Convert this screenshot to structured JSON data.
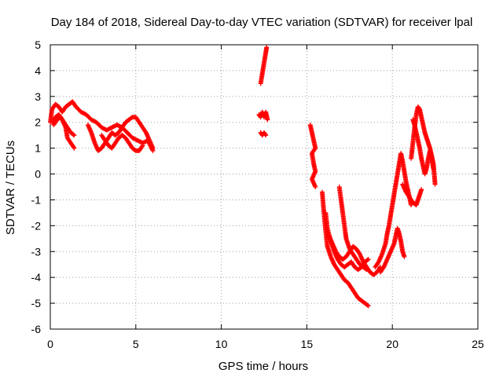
{
  "chart_data": {
    "type": "scatter",
    "title": "Day 184 of 2018, Sidereal Day-to-day VTEC variation (SDTVAR) for receiver lpal",
    "xlabel": "GPS time / hours",
    "ylabel": "SDTVAR / TECUs",
    "xlim": [
      0,
      25
    ],
    "ylim": [
      -6,
      5
    ],
    "xticks": [
      0,
      5,
      10,
      15,
      20,
      25
    ],
    "yticks": [
      -6,
      -5,
      -4,
      -3,
      -2,
      -1,
      0,
      1,
      2,
      3,
      4,
      5
    ],
    "grid": true,
    "marker": "+",
    "color": "#ff0000",
    "series": [
      {
        "points": [
          [
            0.0,
            2.0
          ],
          [
            0.1,
            2.5
          ],
          [
            0.3,
            2.7
          ],
          [
            0.5,
            2.6
          ],
          [
            0.7,
            2.4
          ],
          [
            0.9,
            2.6
          ],
          [
            1.1,
            2.7
          ],
          [
            1.3,
            2.8
          ],
          [
            1.5,
            2.6
          ],
          [
            1.8,
            2.4
          ],
          [
            2.1,
            2.3
          ],
          [
            2.4,
            2.1
          ],
          [
            2.7,
            2.0
          ],
          [
            3.0,
            1.8
          ],
          [
            3.3,
            1.7
          ],
          [
            3.6,
            1.8
          ],
          [
            3.9,
            1.9
          ],
          [
            4.2,
            1.8
          ],
          [
            4.5,
            1.6
          ],
          [
            4.8,
            1.4
          ],
          [
            5.1,
            1.3
          ],
          [
            5.4,
            1.2
          ],
          [
            5.7,
            1.3
          ],
          [
            6.0,
            0.9
          ]
        ]
      },
      {
        "points": [
          [
            0.1,
            2.0
          ],
          [
            0.3,
            2.2
          ],
          [
            0.5,
            2.3
          ],
          [
            0.7,
            2.1
          ],
          [
            0.9,
            1.8
          ],
          [
            1.0,
            1.4
          ],
          [
            1.2,
            1.2
          ],
          [
            1.4,
            1.0
          ]
        ]
      },
      {
        "points": [
          [
            0.2,
            1.9
          ],
          [
            0.4,
            2.1
          ],
          [
            0.6,
            2.2
          ],
          [
            0.8,
            2.0
          ],
          [
            1.0,
            1.8
          ],
          [
            1.2,
            1.6
          ],
          [
            1.4,
            1.5
          ]
        ]
      },
      {
        "points": [
          [
            2.2,
            1.9
          ],
          [
            2.4,
            1.6
          ],
          [
            2.6,
            1.2
          ],
          [
            2.8,
            0.9
          ],
          [
            3.0,
            1.0
          ],
          [
            3.2,
            1.2
          ],
          [
            3.4,
            1.4
          ],
          [
            3.6,
            1.6
          ],
          [
            3.8,
            1.5
          ],
          [
            4.0,
            1.6
          ],
          [
            4.2,
            1.8
          ],
          [
            4.4,
            2.0
          ],
          [
            4.6,
            2.1
          ],
          [
            4.8,
            2.2
          ],
          [
            5.0,
            2.2
          ],
          [
            5.2,
            2.0
          ],
          [
            5.4,
            1.8
          ],
          [
            5.6,
            1.6
          ],
          [
            5.8,
            1.3
          ],
          [
            6.0,
            1.0
          ]
        ]
      },
      {
        "points": [
          [
            3.0,
            1.5
          ],
          [
            3.2,
            1.3
          ],
          [
            3.4,
            1.1
          ],
          [
            3.6,
            1.0
          ],
          [
            3.8,
            1.2
          ],
          [
            4.0,
            1.4
          ],
          [
            4.2,
            1.5
          ],
          [
            4.4,
            1.4
          ],
          [
            4.6,
            1.2
          ],
          [
            4.8,
            1.0
          ],
          [
            5.0,
            0.9
          ],
          [
            5.2,
            0.9
          ],
          [
            5.4,
            1.1
          ]
        ]
      },
      {
        "points": [
          [
            12.3,
            3.5
          ],
          [
            12.4,
            3.9
          ],
          [
            12.5,
            4.3
          ],
          [
            12.6,
            4.7
          ],
          [
            12.65,
            4.9
          ]
        ]
      },
      {
        "points": [
          [
            12.2,
            2.3
          ],
          [
            12.3,
            2.2
          ],
          [
            12.4,
            2.4
          ],
          [
            12.5,
            2.2
          ],
          [
            12.6,
            2.4
          ],
          [
            12.7,
            2.1
          ]
        ]
      },
      {
        "points": [
          [
            12.3,
            1.6
          ],
          [
            12.4,
            1.5
          ],
          [
            12.5,
            1.6
          ],
          [
            12.6,
            1.5
          ]
        ]
      },
      {
        "points": [
          [
            15.2,
            1.9
          ],
          [
            15.3,
            1.6
          ],
          [
            15.4,
            1.3
          ],
          [
            15.5,
            1.0
          ],
          [
            15.3,
            0.8
          ],
          [
            15.4,
            0.4
          ],
          [
            15.5,
            0.1
          ],
          [
            15.3,
            -0.2
          ],
          [
            15.5,
            -0.5
          ]
        ]
      },
      {
        "points": [
          [
            15.9,
            -0.7
          ],
          [
            16.0,
            -1.5
          ],
          [
            16.1,
            -2.2
          ],
          [
            16.2,
            -2.8
          ],
          [
            16.4,
            -3.2
          ],
          [
            16.6,
            -3.5
          ],
          [
            16.8,
            -3.7
          ],
          [
            17.0,
            -3.9
          ],
          [
            17.2,
            -4.1
          ],
          [
            17.4,
            -4.2
          ],
          [
            17.6,
            -4.4
          ],
          [
            17.8,
            -4.6
          ],
          [
            18.0,
            -4.8
          ],
          [
            18.2,
            -4.9
          ],
          [
            18.4,
            -5.0
          ],
          [
            18.6,
            -5.1
          ]
        ]
      },
      {
        "points": [
          [
            16.1,
            -1.5
          ],
          [
            16.2,
            -2.1
          ],
          [
            16.4,
            -2.6
          ],
          [
            16.6,
            -3.0
          ],
          [
            16.8,
            -3.3
          ],
          [
            17.0,
            -3.5
          ],
          [
            17.2,
            -3.6
          ],
          [
            17.4,
            -3.5
          ],
          [
            17.6,
            -3.4
          ],
          [
            17.8,
            -3.6
          ],
          [
            18.0,
            -3.7
          ],
          [
            18.2,
            -3.6
          ],
          [
            18.4,
            -3.4
          ],
          [
            18.6,
            -3.3
          ]
        ]
      },
      {
        "points": [
          [
            16.3,
            -2.4
          ],
          [
            16.5,
            -2.7
          ],
          [
            16.7,
            -3.0
          ],
          [
            16.9,
            -3.2
          ],
          [
            17.1,
            -3.3
          ],
          [
            17.3,
            -3.2
          ],
          [
            17.5,
            -3.0
          ],
          [
            17.7,
            -2.8
          ],
          [
            17.9,
            -2.9
          ],
          [
            18.1,
            -3.1
          ],
          [
            18.3,
            -3.4
          ],
          [
            18.5,
            -3.6
          ],
          [
            18.7,
            -3.8
          ],
          [
            18.9,
            -3.9
          ],
          [
            19.1,
            -3.8
          ],
          [
            19.3,
            -3.6
          ]
        ]
      },
      {
        "points": [
          [
            16.9,
            -0.5
          ],
          [
            17.0,
            -1.0
          ],
          [
            17.1,
            -1.5
          ],
          [
            17.2,
            -2.0
          ],
          [
            17.3,
            -2.5
          ],
          [
            17.5,
            -2.9
          ],
          [
            17.7,
            -3.1
          ],
          [
            17.9,
            -3.3
          ],
          [
            18.1,
            -3.5
          ],
          [
            18.3,
            -3.6
          ],
          [
            18.5,
            -3.7
          ]
        ]
      },
      {
        "points": [
          [
            19.0,
            -3.6
          ],
          [
            19.2,
            -3.4
          ],
          [
            19.4,
            -3.1
          ],
          [
            19.6,
            -2.7
          ],
          [
            19.7,
            -2.3
          ],
          [
            19.8,
            -2.0
          ],
          [
            19.9,
            -1.6
          ],
          [
            20.0,
            -1.2
          ],
          [
            20.1,
            -0.8
          ],
          [
            20.2,
            -0.4
          ],
          [
            20.3,
            0.0
          ],
          [
            20.4,
            0.4
          ],
          [
            20.5,
            0.8
          ],
          [
            20.6,
            0.5
          ],
          [
            20.7,
            0.1
          ],
          [
            20.8,
            -0.3
          ],
          [
            20.9,
            -0.6
          ],
          [
            21.0,
            -0.9
          ],
          [
            21.1,
            -1.2
          ]
        ]
      },
      {
        "points": [
          [
            19.3,
            -3.8
          ],
          [
            19.5,
            -3.6
          ],
          [
            19.7,
            -3.3
          ],
          [
            19.9,
            -3.0
          ],
          [
            20.1,
            -2.7
          ],
          [
            20.2,
            -2.4
          ],
          [
            20.3,
            -2.1
          ],
          [
            20.4,
            -2.3
          ],
          [
            20.5,
            -2.6
          ],
          [
            20.6,
            -3.0
          ],
          [
            20.7,
            -3.2
          ]
        ]
      },
      {
        "points": [
          [
            21.1,
            0.6
          ],
          [
            21.2,
            1.2
          ],
          [
            21.3,
            1.8
          ],
          [
            21.4,
            2.3
          ],
          [
            21.5,
            2.6
          ],
          [
            21.6,
            2.5
          ],
          [
            21.7,
            2.2
          ],
          [
            21.8,
            1.9
          ],
          [
            21.9,
            1.6
          ],
          [
            22.0,
            1.4
          ],
          [
            22.1,
            1.2
          ],
          [
            22.2,
            1.0
          ],
          [
            22.3,
            0.7
          ],
          [
            22.4,
            0.4
          ],
          [
            22.45,
            0.0
          ],
          [
            22.5,
            -0.4
          ]
        ]
      },
      {
        "points": [
          [
            21.2,
            2.1
          ],
          [
            21.3,
            1.9
          ],
          [
            21.4,
            1.6
          ],
          [
            21.5,
            1.3
          ],
          [
            21.6,
            1.0
          ],
          [
            21.7,
            0.6
          ],
          [
            21.8,
            0.3
          ],
          [
            21.9,
            0.0
          ],
          [
            22.0,
            0.2
          ],
          [
            22.1,
            0.6
          ],
          [
            22.2,
            0.9
          ],
          [
            22.3,
            0.6
          ],
          [
            22.4,
            0.2
          ]
        ]
      },
      {
        "points": [
          [
            20.6,
            -0.4
          ],
          [
            20.8,
            -0.7
          ],
          [
            21.0,
            -0.9
          ],
          [
            21.2,
            -1.1
          ],
          [
            21.4,
            -1.2
          ],
          [
            21.5,
            -1.0
          ],
          [
            21.6,
            -0.8
          ],
          [
            21.7,
            -0.6
          ]
        ]
      }
    ]
  }
}
